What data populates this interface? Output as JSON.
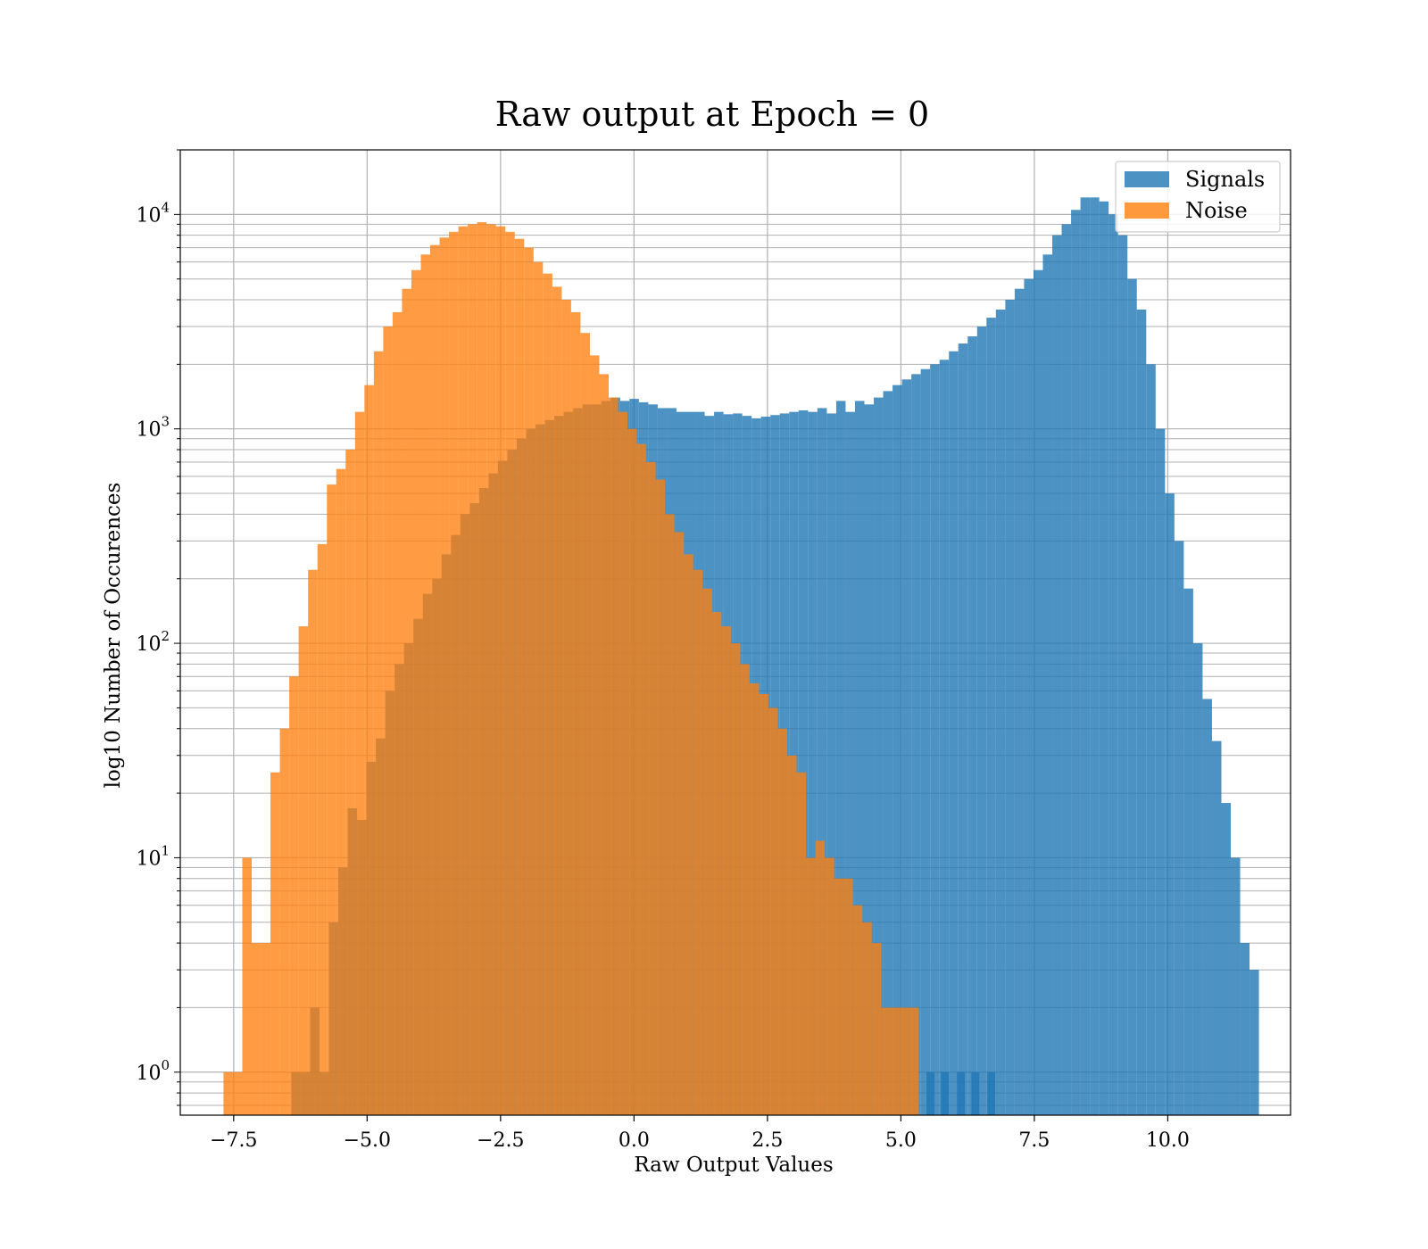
{
  "chart_data": {
    "type": "bar",
    "title": "Raw output at Epoch = 0",
    "xlabel": "Raw Output Values",
    "ylabel": "log10 Number of Occurences",
    "xlim": [
      -8.5,
      12.3
    ],
    "ylim": [
      0.63,
      20000
    ],
    "y_scale": "log",
    "grid": true,
    "legend_position": "top-right",
    "x_ticks": [
      {
        "value": -7.5,
        "label": "−7.5"
      },
      {
        "value": -5.0,
        "label": "−5.0"
      },
      {
        "value": -2.5,
        "label": "−2.5"
      },
      {
        "value": 0.0,
        "label": "0.0"
      },
      {
        "value": 2.5,
        "label": "2.5"
      },
      {
        "value": 5.0,
        "label": "5.0"
      },
      {
        "value": 7.5,
        "label": "7.5"
      },
      {
        "value": 10.0,
        "label": "10.0"
      }
    ],
    "y_ticks": [
      {
        "value": 1,
        "base": "10",
        "exp": "0"
      },
      {
        "value": 10,
        "base": "10",
        "exp": "1"
      },
      {
        "value": 100,
        "base": "10",
        "exp": "2"
      },
      {
        "value": 1000,
        "base": "10",
        "exp": "3"
      },
      {
        "value": 10000,
        "base": "10",
        "exp": "4"
      }
    ],
    "series": [
      {
        "name": "Signals",
        "color": "#1f77b4",
        "bin_start": -6.42,
        "bin_width": 0.176,
        "counts": [
          1,
          1,
          2,
          1,
          5,
          9,
          17,
          15,
          28,
          36,
          60,
          80,
          100,
          130,
          170,
          200,
          260,
          320,
          400,
          450,
          530,
          620,
          710,
          800,
          900,
          1000,
          1050,
          1100,
          1150,
          1200,
          1250,
          1300,
          1300,
          1350,
          1400,
          1350,
          1380,
          1330,
          1300,
          1250,
          1250,
          1200,
          1200,
          1200,
          1150,
          1200,
          1170,
          1180,
          1150,
          1120,
          1140,
          1160,
          1180,
          1200,
          1220,
          1200,
          1250,
          1180,
          1350,
          1200,
          1350,
          1300,
          1400,
          1500,
          1600,
          1700,
          1800,
          1900,
          2000,
          2100,
          2300,
          2500,
          2700,
          3000,
          3300,
          3600,
          4000,
          4500,
          5000,
          5500,
          6500,
          8000,
          9000,
          10500,
          12000,
          12000,
          11500,
          10000,
          8000,
          5000,
          3600,
          2000,
          1000,
          500,
          300,
          180,
          100,
          55,
          35,
          18,
          10,
          4,
          3
        ],
        "extra_bins": [
          {
            "x": 5.48,
            "count": 1
          },
          {
            "x": 5.75,
            "count": 1
          },
          {
            "x": 6.05,
            "count": 1
          },
          {
            "x": 6.32,
            "count": 1
          },
          {
            "x": 6.62,
            "count": 1
          }
        ]
      },
      {
        "name": "Noise",
        "color": "#ff7f0e",
        "bin_start": -7.69,
        "bin_width": 0.176,
        "counts": [
          1,
          1,
          10,
          4,
          4,
          25,
          40,
          70,
          120,
          220,
          290,
          550,
          650,
          800,
          1200,
          1600,
          2300,
          3000,
          3500,
          4500,
          5500,
          6500,
          7200,
          7800,
          8300,
          8800,
          9000,
          9200,
          9000,
          8800,
          8300,
          7700,
          7000,
          6000,
          5300,
          4600,
          4000,
          3500,
          2800,
          2200,
          1800,
          1400,
          1200,
          1000,
          850,
          700,
          580,
          400,
          330,
          260,
          220,
          180,
          140,
          120,
          100,
          80,
          65,
          58,
          50,
          40,
          30,
          25,
          10,
          12,
          10,
          8,
          8,
          6,
          5,
          4,
          2,
          2,
          2,
          2
        ]
      }
    ]
  }
}
